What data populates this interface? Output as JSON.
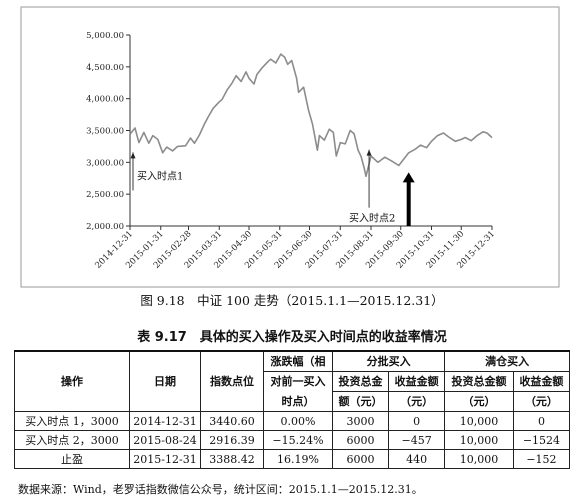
{
  "chart_data": {
    "type": "line",
    "ylim": [
      2000,
      5000
    ],
    "yticks": [
      "2,000.00",
      "2,500.00",
      "3,000.00",
      "3,500.00",
      "4,000.00",
      "4,500.00",
      "5,000.00"
    ],
    "xticks": [
      "2014-12-31",
      "2015-01-31",
      "2015-02-28",
      "2015-03-31",
      "2015-04-30",
      "2015-05-31",
      "2015-06-30",
      "2015-07-31",
      "2015-08-31",
      "2015-09-30",
      "2015-10-31",
      "2015-11-30",
      "2015-12-31"
    ],
    "series": [
      {
        "x": [
          "2014-12-31",
          "2015-01-05",
          "2015-01-09",
          "2015-01-14",
          "2015-01-19",
          "2015-01-23",
          "2015-01-28",
          "2015-02-02",
          "2015-02-06",
          "2015-02-12",
          "2015-02-17",
          "2015-02-25",
          "2015-03-02",
          "2015-03-06",
          "2015-03-11",
          "2015-03-16",
          "2015-03-20",
          "2015-03-25",
          "2015-03-31",
          "2015-04-03",
          "2015-04-08",
          "2015-04-13",
          "2015-04-17",
          "2015-04-22",
          "2015-04-27",
          "2015-04-30",
          "2015-05-05",
          "2015-05-08",
          "2015-05-13",
          "2015-05-19",
          "2015-05-22",
          "2015-05-27",
          "2015-06-01",
          "2015-06-05",
          "2015-06-08",
          "2015-06-12",
          "2015-06-17",
          "2015-06-19",
          "2015-06-24",
          "2015-06-29",
          "2015-07-03",
          "2015-07-08",
          "2015-07-10",
          "2015-07-15",
          "2015-07-20",
          "2015-07-24",
          "2015-07-27",
          "2015-07-31",
          "2015-08-05",
          "2015-08-10",
          "2015-08-14",
          "2015-08-18",
          "2015-08-21",
          "2015-08-24",
          "2015-08-26",
          "2015-08-31",
          "2015-09-07",
          "2015-09-14",
          "2015-09-21",
          "2015-09-28",
          "2015-10-08",
          "2015-10-14",
          "2015-10-20",
          "2015-10-26",
          "2015-10-31",
          "2015-11-06",
          "2015-11-12",
          "2015-11-18",
          "2015-11-24",
          "2015-11-30",
          "2015-12-04",
          "2015-12-10",
          "2015-12-16",
          "2015-12-22",
          "2015-12-26",
          "2015-12-31"
        ],
        "y": [
          3440,
          3540,
          3310,
          3470,
          3300,
          3420,
          3360,
          3150,
          3240,
          3180,
          3250,
          3260,
          3380,
          3300,
          3430,
          3600,
          3720,
          3850,
          3950,
          3990,
          4140,
          4250,
          4360,
          4270,
          4420,
          4320,
          4230,
          4380,
          4480,
          4580,
          4620,
          4560,
          4700,
          4650,
          4540,
          4600,
          4320,
          4100,
          4180,
          3820,
          3600,
          3190,
          3420,
          3350,
          3520,
          3470,
          3100,
          3310,
          3290,
          3500,
          3450,
          3190,
          3090,
          2916,
          2780,
          3100,
          3000,
          3080,
          3020,
          2950,
          3150,
          3200,
          3270,
          3230,
          3330,
          3420,
          3460,
          3390,
          3330,
          3360,
          3390,
          3340,
          3420,
          3480,
          3460,
          3388
        ]
      }
    ],
    "annotations": [
      {
        "text": "买入时点1",
        "x": "2014-12-31",
        "y": 3440
      },
      {
        "text": "买入时点2",
        "x": "2015-08-24",
        "y": 2916
      },
      {
        "x": "2015-10-08",
        "y": 3000
      }
    ],
    "grid": false
  },
  "figure_caption": "图 9.18　中证 100 走势（2015.1.1—2015.12.31）",
  "table": {
    "title": "表 9.17　具体的买入操作及买入时间点的收益率情况",
    "headers": {
      "op": "操作",
      "date": "日期",
      "index": "指数点位",
      "change_l1": "涨跌幅（相",
      "change_l2": "对前一买入",
      "change_l3": "时点）",
      "batch": "分批买入",
      "full": "满仓买入",
      "batch_inv_l1": "投资总金",
      "batch_inv_l2": "额（元）",
      "batch_ret_l1": "收益金额",
      "batch_ret_l2": "（元）",
      "full_inv_l1": "投资总金额",
      "full_inv_l2": "（元）",
      "full_ret_l1": "收益金额",
      "full_ret_l2": "（元）"
    },
    "rows": [
      {
        "op": "买入时点 1，3000",
        "date": "2014-12-31",
        "index": "3440.60",
        "change": "0.00%",
        "batch_inv": "3000",
        "batch_ret": "0",
        "full_inv": "10,000",
        "full_ret": "0"
      },
      {
        "op": "买入时点 2，3000",
        "date": "2015-08-24",
        "index": "2916.39",
        "change": "−15.24%",
        "batch_inv": "6000",
        "batch_ret": "−457",
        "full_inv": "10,000",
        "full_ret": "−1524"
      },
      {
        "op": "止盈",
        "date": "2015-12-31",
        "index": "3388.42",
        "change": "16.19%",
        "batch_inv": "6000",
        "batch_ret": "440",
        "full_inv": "10,000",
        "full_ret": "−152"
      }
    ]
  },
  "source": "数据来源：Wind，老罗话指数微信公众号，统计区间：2015.1.1—2015.12.31。"
}
